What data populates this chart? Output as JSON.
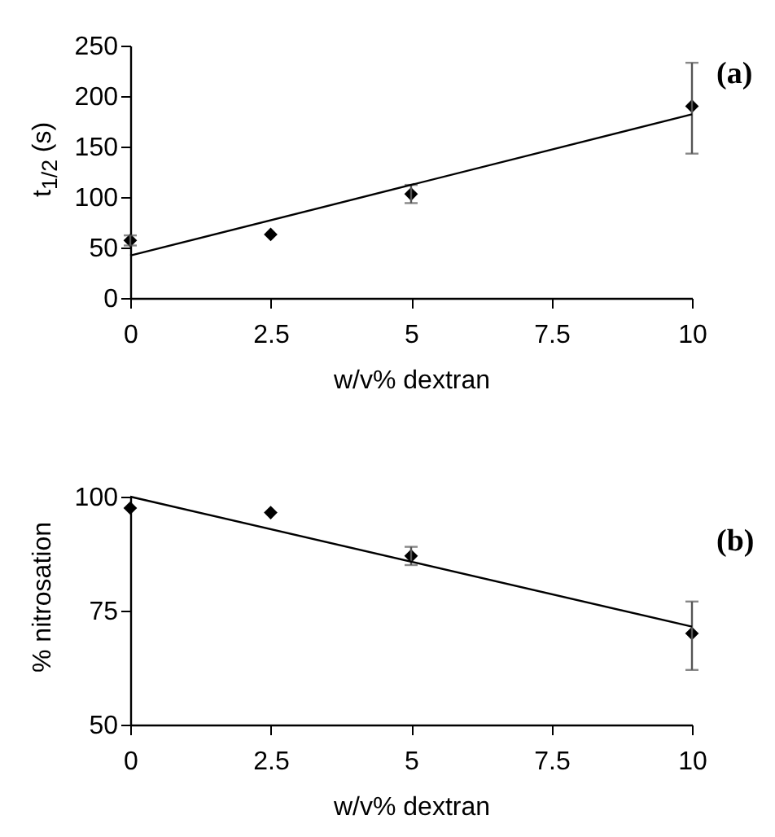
{
  "chart_data": [
    {
      "type": "scatter",
      "xlabel": "w/v% dextran",
      "ylabel": "t$_{1/2}$ (s)",
      "annotations": [
        "(a)"
      ],
      "marker": "diamond",
      "grid": false,
      "xlim": [
        0,
        10
      ],
      "xticks": [
        0,
        2.5,
        5,
        7.5,
        10
      ],
      "ylim": [
        0,
        250
      ],
      "yticks": [
        0,
        50,
        100,
        150,
        200,
        250
      ],
      "series": [
        {
          "color": "#000000",
          "x": [
            0,
            2.5,
            5,
            10
          ],
          "values": [
            57,
            63,
            103,
            190
          ],
          "errors": [
            5,
            null,
            9,
            [
              143,
              233
            ]
          ]
        },
        {
          "type": "line",
          "marker": "none",
          "color": "#000000",
          "x": [
            0,
            10
          ],
          "values": [
            42,
            182
          ]
        }
      ]
    },
    {
      "type": "scatter",
      "xlabel": "w/v% dextran",
      "ylabel": "% nitrosation",
      "annotations": [
        "(b)"
      ],
      "marker": "diamond",
      "grid": false,
      "xlim": [
        0,
        10
      ],
      "xticks": [
        0,
        2.5,
        5,
        7.5,
        10
      ],
      "ylim": [
        50,
        100
      ],
      "yticks": [
        50,
        75,
        100
      ],
      "series": [
        {
          "color": "#000000",
          "x": [
            0,
            2.5,
            5,
            10
          ],
          "values": [
            97.5,
            96.5,
            87,
            70
          ],
          "errors": [
            null,
            null,
            2,
            [
              62,
              77
            ]
          ]
        },
        {
          "type": "line",
          "marker": "none",
          "color": "#000000",
          "x": [
            0,
            10
          ],
          "values": [
            100,
            71.5
          ]
        }
      ]
    }
  ]
}
